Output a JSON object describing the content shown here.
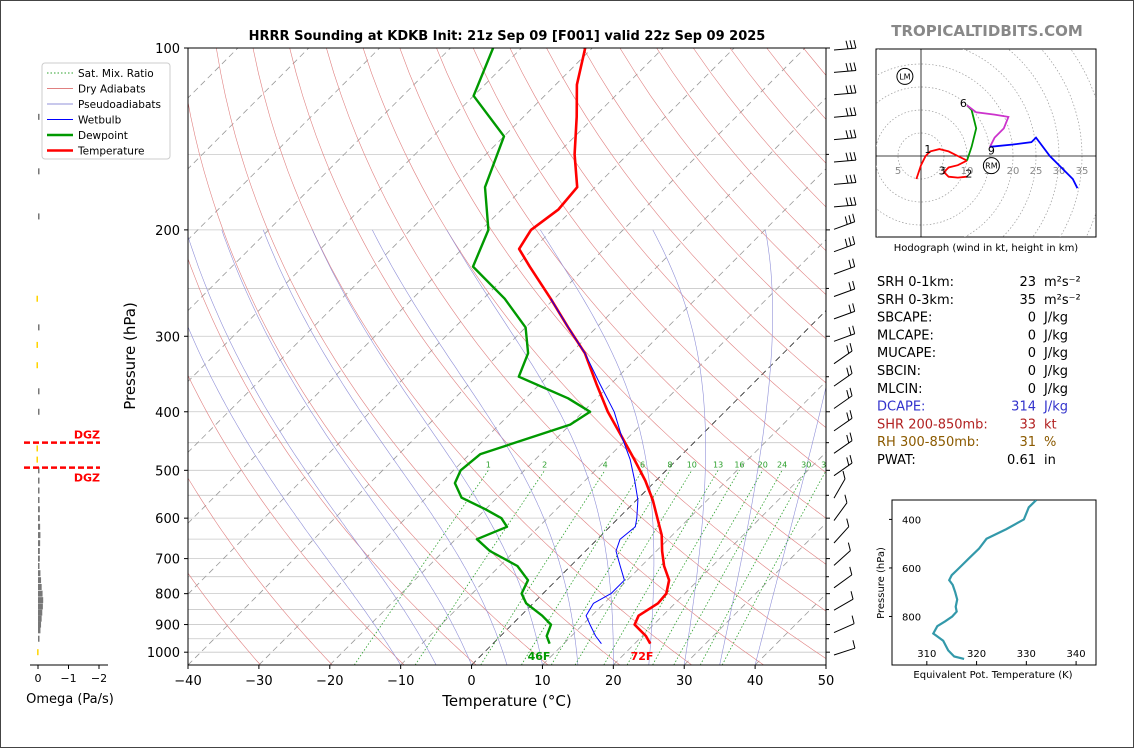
{
  "header": {
    "title": "HRRR Sounding at KDKB Init: 21z Sep 09 [F001] valid 22z Sep 09 2025",
    "brand": "TROPICALTIDBITS.COM"
  },
  "chart_data": [
    {
      "type": "line",
      "name": "skewt",
      "xlabel": "Temperature (°C)",
      "ylabel": "Pressure (hPa)",
      "xlim": [
        -40,
        50
      ],
      "ylim": [
        1050,
        100
      ],
      "y_scale": "log",
      "x_ticks": [
        -40,
        -30,
        -20,
        -10,
        0,
        10,
        20,
        30,
        40,
        50
      ],
      "y_ticks": [
        100,
        200,
        300,
        400,
        500,
        600,
        700,
        800,
        900,
        1000
      ],
      "legend_position": "top-left",
      "legend": [
        {
          "label": "Sat. Mix. Ratio",
          "color": "#2ca02c",
          "style": "dotted"
        },
        {
          "label": "Dry Adiabats",
          "color": "#e08080",
          "style": "solid"
        },
        {
          "label": "Pseudoadiabats",
          "color": "#9090d8",
          "style": "solid"
        },
        {
          "label": "Wetbulb",
          "color": "#0000ff",
          "style": "solid"
        },
        {
          "label": "Dewpoint",
          "color": "#009900",
          "style": "solid"
        },
        {
          "label": "Temperature",
          "color": "#ff0000",
          "style": "solid"
        }
      ],
      "mixing_ratio_labels": [
        "1",
        "2",
        "4",
        "6",
        "8",
        "10",
        "13",
        "16",
        "20",
        "24",
        "30",
        "36"
      ],
      "surface_labels": {
        "dewpoint": "46F",
        "temperature": "72F"
      },
      "series": [
        {
          "name": "Temperature",
          "color": "#ff0000",
          "p": [
            968,
            940,
            900,
            870,
            830,
            800,
            760,
            720,
            680,
            640,
            600,
            560,
            520,
            480,
            440,
            400,
            360,
            320,
            290,
            260,
            230,
            215,
            200,
            185,
            170,
            150,
            130,
            115,
            100
          ],
          "t": [
            22.2,
            20.5,
            17.3,
            16.6,
            17.6,
            17.4,
            15.9,
            13.2,
            10.8,
            8.5,
            5.5,
            2.3,
            -1.5,
            -6.0,
            -11.0,
            -16.5,
            -22.0,
            -28.0,
            -34.0,
            -40.5,
            -48.0,
            -52.0,
            -53.0,
            -52.0,
            -52.5,
            -57.5,
            -62.5,
            -67.0,
            -71.0
          ]
        },
        {
          "name": "Dewpoint",
          "color": "#009900",
          "p": [
            968,
            940,
            900,
            870,
            830,
            800,
            760,
            720,
            680,
            650,
            620,
            600,
            580,
            555,
            525,
            500,
            470,
            420,
            400,
            380,
            350,
            320,
            290,
            260,
            230,
            200,
            170,
            140,
            120,
            100
          ],
          "t": [
            8.0,
            6.5,
            5.5,
            3.0,
            -1.0,
            -3.0,
            -4.0,
            -7.5,
            -13.5,
            -17.0,
            -14.5,
            -16.5,
            -20.0,
            -25.0,
            -28.0,
            -29.0,
            -28.5,
            -20.0,
            -19.0,
            -24.0,
            -34.0,
            -36.0,
            -40.0,
            -47.0,
            -56.0,
            -59.0,
            -65.5,
            -70.0,
            -80.0,
            -84.0
          ]
        },
        {
          "name": "Wetbulb",
          "color": "#0000ff",
          "p": [
            968,
            940,
            900,
            870,
            830,
            800,
            760,
            720,
            680,
            650,
            620,
            600,
            560,
            520,
            480,
            440,
            400,
            360,
            320,
            290,
            260
          ],
          "t": [
            15.3,
            13.4,
            11.0,
            9.2,
            8.5,
            9.6,
            9.6,
            7.0,
            4.3,
            3.2,
            3.6,
            2.6,
            0.2,
            -3.0,
            -6.6,
            -11.0,
            -15.6,
            -21.5,
            -28.0,
            -34.0,
            -40.5
          ]
        }
      ],
      "wind_barbs_count": 28
    },
    {
      "type": "line",
      "name": "hodograph",
      "caption": "Hodograph (wind in kt, height in km)",
      "x_ticks": [
        "5",
        "5",
        "10",
        "15",
        "20",
        "25",
        "30",
        "35"
      ],
      "markers": [
        "LM",
        "RM"
      ],
      "height_labels": [
        "1",
        "2",
        "3",
        "6",
        "9"
      ]
    },
    {
      "type": "line",
      "name": "theta_e",
      "xlabel": "Equivalent Pot. Temperature (K)",
      "ylabel": "Pressure (hPa)",
      "xlim": [
        303,
        344
      ],
      "ylim": [
        1000,
        320
      ],
      "x_ticks": [
        310,
        320,
        330,
        340
      ],
      "y_ticks": [
        400,
        600,
        800
      ],
      "series": [
        {
          "name": "",
          "color": "#3399aa",
          "p": [
            320,
            350,
            400,
            440,
            480,
            520,
            560,
            590,
            610,
            630,
            650,
            670,
            700,
            730,
            760,
            780,
            800,
            820,
            840,
            870,
            900,
            940,
            965,
            975
          ],
          "thetae": [
            332,
            330.5,
            329.5,
            326,
            322,
            320.5,
            318.5,
            317,
            316,
            315,
            314.5,
            315.2,
            315.7,
            316.1,
            315.8,
            316.0,
            315.1,
            313.7,
            312.1,
            311.3,
            313.3,
            314.3,
            315.5,
            317.5
          ]
        }
      ]
    },
    {
      "type": "bar",
      "name": "omega",
      "xlabel": "Omega (Pa/s)",
      "x_ticks": [
        "0",
        "−1",
        "−2"
      ],
      "dgz_labels": [
        "DGZ",
        "DGZ"
      ],
      "dgz_pressures": [
        450,
        495
      ],
      "p": [
        130,
        160,
        190,
        260,
        290,
        310,
        335,
        370,
        400,
        460,
        480,
        500,
        520,
        540,
        560,
        580,
        600,
        620,
        640,
        660,
        680,
        700,
        720,
        740,
        760,
        780,
        800,
        820,
        840,
        860,
        880,
        900,
        920,
        950,
        1000
      ],
      "omega": [
        -0.05,
        -0.05,
        -0.05,
        0.05,
        -0.05,
        0.05,
        0.05,
        -0.03,
        -0.03,
        0.05,
        0.05,
        -0.03,
        -0.05,
        -0.05,
        -0.05,
        -0.06,
        -0.06,
        -0.07,
        -0.08,
        -0.07,
        -0.06,
        -0.06,
        -0.05,
        -0.08,
        -0.1,
        -0.12,
        -0.15,
        -0.17,
        -0.16,
        -0.14,
        -0.12,
        -0.1,
        -0.08,
        -0.05,
        0.03
      ]
    }
  ],
  "indices": [
    {
      "label": "SRH 0-1km:",
      "value": "23",
      "unit": "m²s⁻²",
      "color": "#000000"
    },
    {
      "label": "SRH 0-3km:",
      "value": "35",
      "unit": "m²s⁻²",
      "color": "#000000"
    },
    {
      "label": "SBCAPE:",
      "value": "0",
      "unit": "J/kg",
      "color": "#000000"
    },
    {
      "label": "MLCAPE:",
      "value": "0",
      "unit": "J/kg",
      "color": "#000000"
    },
    {
      "label": "MUCAPE:",
      "value": "0",
      "unit": "J/kg",
      "color": "#000000"
    },
    {
      "label": "SBCIN:",
      "value": "0",
      "unit": "J/kg",
      "color": "#000000"
    },
    {
      "label": "MLCIN:",
      "value": "0",
      "unit": "J/kg",
      "color": "#000000"
    },
    {
      "label": "DCAPE:",
      "value": "314",
      "unit": "J/kg",
      "color": "#3333cc"
    },
    {
      "label": "SHR 200-850mb:",
      "value": "33",
      "unit": "kt",
      "color": "#b22222"
    },
    {
      "label": "RH 300-850mb:",
      "value": "31",
      "unit": "%",
      "color": "#8b5a00"
    },
    {
      "label": "PWAT:",
      "value": "0.61",
      "unit": "in",
      "color": "#000000"
    }
  ]
}
